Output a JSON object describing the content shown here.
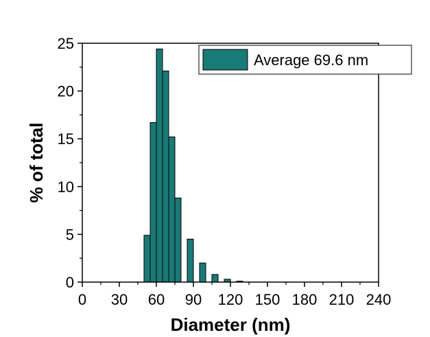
{
  "chart_data": {
    "type": "bar",
    "title": "",
    "xlabel": "Diameter (nm)",
    "ylabel": "% of total",
    "xlim": [
      0,
      240
    ],
    "ylim": [
      0,
      25
    ],
    "x_ticks": [
      "0",
      "30",
      "60",
      "90",
      "120",
      "150",
      "180",
      "210",
      "240"
    ],
    "y_ticks": [
      "0",
      "5",
      "10",
      "15",
      "20",
      "25"
    ],
    "bin_width": 5,
    "series": [
      {
        "name": "Average 69.6 nm",
        "color": "#1a7a76",
        "bins": [
          {
            "start": 50,
            "end": 55,
            "value": 4.9
          },
          {
            "start": 55,
            "end": 60,
            "value": 16.7
          },
          {
            "start": 60,
            "end": 65,
            "value": 24.4
          },
          {
            "start": 65,
            "end": 70,
            "value": 22.1
          },
          {
            "start": 70,
            "end": 75,
            "value": 15.2
          },
          {
            "start": 75,
            "end": 80,
            "value": 8.8
          },
          {
            "start": 85,
            "end": 90,
            "value": 4.5
          },
          {
            "start": 95,
            "end": 100,
            "value": 2.0
          },
          {
            "start": 105,
            "end": 110,
            "value": 0.8
          },
          {
            "start": 115,
            "end": 120,
            "value": 0.3
          },
          {
            "start": 125,
            "end": 130,
            "value": 0.1
          }
        ]
      }
    ],
    "legend_position": "top-right",
    "grid": false
  }
}
